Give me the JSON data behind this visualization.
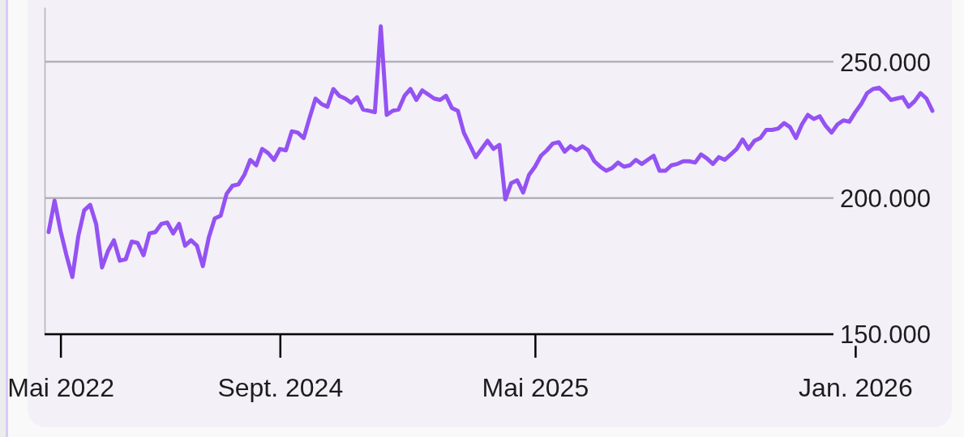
{
  "chart_data": {
    "type": "line",
    "categories": [
      null,
      null,
      "Mai 2022",
      null,
      null,
      null,
      null,
      null,
      null,
      null,
      null,
      null,
      null,
      null,
      null,
      null,
      null,
      null,
      null,
      null,
      null,
      null,
      null,
      null,
      null,
      null,
      null,
      null,
      null,
      null,
      null,
      null,
      null,
      null,
      null,
      null,
      null,
      null,
      null,
      "Sept. 2024",
      null,
      null,
      null,
      null,
      null,
      null,
      null,
      null,
      null,
      null,
      null,
      null,
      null,
      null,
      null,
      null,
      null,
      null,
      null,
      null,
      null,
      null,
      null,
      null,
      null,
      null,
      null,
      null,
      null,
      null,
      null,
      null,
      null,
      null,
      null,
      null,
      null,
      null,
      null,
      null,
      null,
      null,
      "Mai 2025",
      null,
      null,
      null,
      null,
      null,
      null,
      null,
      null,
      null,
      null,
      null,
      null,
      null,
      null,
      null,
      null,
      null,
      null,
      null,
      null,
      null,
      null,
      null,
      null,
      null,
      null,
      null,
      null,
      null,
      null,
      null,
      null,
      null,
      null,
      null,
      null,
      null,
      null,
      null,
      null,
      null,
      null,
      null,
      null,
      null,
      null,
      null,
      null,
      null,
      null,
      null,
      null,
      null,
      "Jan. 2026",
      null,
      null,
      null,
      null,
      null,
      null,
      null,
      null,
      null,
      null,
      null,
      null,
      null
    ],
    "values": [
      187500,
      199000,
      188000,
      179000,
      171000,
      186000,
      195500,
      197500,
      190500,
      174500,
      180500,
      184500,
      177000,
      177500,
      184000,
      183500,
      179000,
      187000,
      187500,
      190500,
      191000,
      187000,
      190500,
      182500,
      184500,
      182500,
      175000,
      185500,
      192500,
      193500,
      201500,
      204500,
      205000,
      208500,
      214000,
      212000,
      218000,
      216500,
      214000,
      218000,
      217500,
      224500,
      224000,
      222000,
      229500,
      236500,
      234500,
      233500,
      240000,
      237500,
      236500,
      235000,
      237000,
      232500,
      232000,
      231500,
      263000,
      230500,
      232000,
      232500,
      237500,
      240000,
      236000,
      239500,
      238000,
      236500,
      236000,
      237500,
      233000,
      232000,
      224000,
      219500,
      215000,
      218000,
      221000,
      218000,
      219500,
      199500,
      205500,
      206500,
      202000,
      208500,
      211500,
      215500,
      217500,
      220000,
      220500,
      217000,
      219000,
      217500,
      219000,
      217500,
      213500,
      211500,
      210000,
      211000,
      213000,
      211500,
      212000,
      214000,
      212500,
      214000,
      215500,
      210000,
      210000,
      212000,
      212500,
      213500,
      213500,
      213000,
      216000,
      214500,
      212500,
      215000,
      214000,
      216000,
      218000,
      221500,
      218000,
      221000,
      222000,
      225000,
      225000,
      225500,
      227500,
      226000,
      222000,
      227000,
      230500,
      229000,
      230000,
      226500,
      224000,
      227000,
      228500,
      228000,
      231500,
      234500,
      238500,
      240000,
      240500,
      238500,
      236000,
      236500,
      237000,
      233500,
      235500,
      238500,
      236500,
      232000
    ],
    "color": "#9452f3",
    "ylim": [
      150000,
      270000
    ],
    "yticks": [
      {
        "value": 150000,
        "label": "150.000"
      },
      {
        "value": 200000,
        "label": "200.000"
      },
      {
        "value": 250000,
        "label": "250.000"
      }
    ],
    "grid": "y"
  }
}
